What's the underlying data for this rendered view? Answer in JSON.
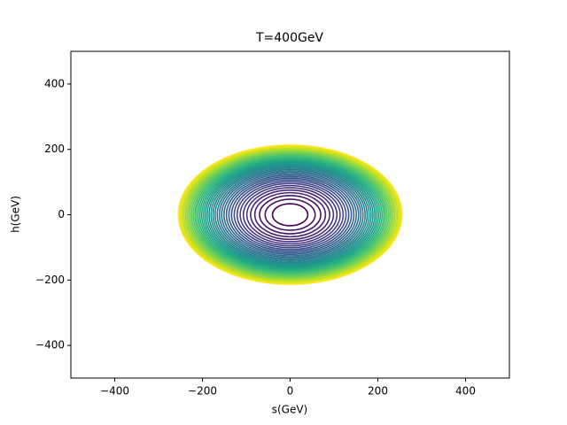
{
  "chart_data": {
    "type": "contour",
    "title": "T=400GeV",
    "x_label": "s(GeV)",
    "y_label": "h(GeV)",
    "xlim": [
      -500,
      500
    ],
    "ylim": [
      -500,
      500
    ],
    "xticks": [
      {
        "value": -400,
        "label": "−400"
      },
      {
        "value": -200,
        "label": "−200"
      },
      0,
      200,
      400
    ],
    "yticks": [
      {
        "value": -400,
        "label": "−400"
      },
      {
        "value": -200,
        "label": "−200"
      },
      0,
      200,
      400
    ],
    "levels": [
      {
        "s_extent": 40.3,
        "h_extent": 33.7,
        "color": "#440154"
      },
      {
        "s_extent": 57.0,
        "h_extent": 47.6,
        "color": "#471365"
      },
      {
        "s_extent": 69.8,
        "h_extent": 58.3,
        "color": "#471365"
      },
      {
        "s_extent": 80.6,
        "h_extent": 67.4,
        "color": "#482475"
      },
      {
        "s_extent": 90.2,
        "h_extent": 75.3,
        "color": "#482475"
      },
      {
        "s_extent": 98.8,
        "h_extent": 82.5,
        "color": "#463480"
      },
      {
        "s_extent": 106.7,
        "h_extent": 89.1,
        "color": "#463480"
      },
      {
        "s_extent": 114.0,
        "h_extent": 95.3,
        "color": "#414487"
      },
      {
        "s_extent": 121.0,
        "h_extent": 101.0,
        "color": "#414487"
      },
      {
        "s_extent": 127.5,
        "h_extent": 106.5,
        "color": "#3b528b"
      },
      {
        "s_extent": 133.7,
        "h_extent": 111.7,
        "color": "#3b528b"
      },
      {
        "s_extent": 139.7,
        "h_extent": 116.7,
        "color": "#355f8d"
      },
      {
        "s_extent": 145.4,
        "h_extent": 121.4,
        "color": "#355f8d"
      },
      {
        "s_extent": 150.9,
        "h_extent": 126.0,
        "color": "#2f6c8e"
      },
      {
        "s_extent": 156.2,
        "h_extent": 130.4,
        "color": "#2f6c8e"
      },
      {
        "s_extent": 161.3,
        "h_extent": 134.7,
        "color": "#2a788e"
      },
      {
        "s_extent": 166.2,
        "h_extent": 138.9,
        "color": "#2a788e"
      },
      {
        "s_extent": 171.1,
        "h_extent": 142.9,
        "color": "#25848e"
      },
      {
        "s_extent": 175.7,
        "h_extent": 146.8,
        "color": "#25848e"
      },
      {
        "s_extent": 180.3,
        "h_extent": 150.6,
        "color": "#21918c"
      },
      {
        "s_extent": 184.8,
        "h_extent": 154.3,
        "color": "#21918c"
      },
      {
        "s_extent": 189.1,
        "h_extent": 158.0,
        "color": "#1e9c89"
      },
      {
        "s_extent": 193.4,
        "h_extent": 161.5,
        "color": "#1e9c89"
      },
      {
        "s_extent": 197.5,
        "h_extent": 165.0,
        "color": "#22a884"
      },
      {
        "s_extent": 201.6,
        "h_extent": 168.4,
        "color": "#22a884"
      },
      {
        "s_extent": 205.6,
        "h_extent": 171.7,
        "color": "#2fb47c"
      },
      {
        "s_extent": 209.5,
        "h_extent": 175.0,
        "color": "#2fb47c"
      },
      {
        "s_extent": 213.4,
        "h_extent": 178.2,
        "color": "#44bf70"
      },
      {
        "s_extent": 217.1,
        "h_extent": 181.4,
        "color": "#44bf70"
      },
      {
        "s_extent": 220.8,
        "h_extent": 184.5,
        "color": "#5ec962"
      },
      {
        "s_extent": 224.5,
        "h_extent": 187.5,
        "color": "#5ec962"
      },
      {
        "s_extent": 228.1,
        "h_extent": 190.5,
        "color": "#7ad151"
      },
      {
        "s_extent": 231.6,
        "h_extent": 193.5,
        "color": "#7ad151"
      },
      {
        "s_extent": 235.1,
        "h_extent": 196.4,
        "color": "#9bd93c"
      },
      {
        "s_extent": 238.5,
        "h_extent": 199.2,
        "color": "#9bd93c"
      },
      {
        "s_extent": 241.9,
        "h_extent": 202.1,
        "color": "#bddf26"
      },
      {
        "s_extent": 245.3,
        "h_extent": 204.9,
        "color": "#bddf26"
      },
      {
        "s_extent": 248.5,
        "h_extent": 207.6,
        "color": "#dfe318"
      },
      {
        "s_extent": 251.8,
        "h_extent": 210.3,
        "color": "#dfe318"
      },
      {
        "s_extent": 255.0,
        "h_extent": 213.0,
        "color": "#fde725"
      }
    ]
  }
}
